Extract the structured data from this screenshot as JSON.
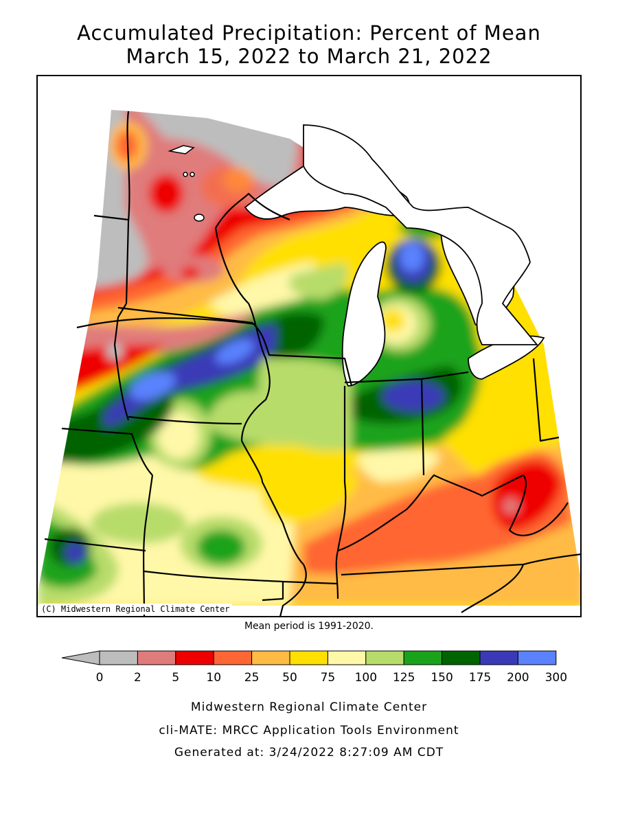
{
  "title": {
    "line1": "Accumulated Precipitation: Percent of Mean",
    "line2": "March 15, 2022 to March 21, 2022"
  },
  "map": {
    "copyright": "(C) Midwestern Regional Climate Center"
  },
  "mean_note": "Mean period is 1991-2020.",
  "legend": {
    "labels": [
      "0",
      "2",
      "5",
      "10",
      "25",
      "50",
      "75",
      "100",
      "125",
      "150",
      "175",
      "200",
      "300"
    ],
    "colors": [
      "#bdbdbd",
      "#e07b7b",
      "#ee0000",
      "#ff6633",
      "#ffbb44",
      "#ffe000",
      "#fff8a8",
      "#b8dc6a",
      "#1aa31a",
      "#006400",
      "#3a3ab8",
      "#5a82ff"
    ]
  },
  "footer": {
    "line1": "Midwestern Regional Climate Center",
    "line2": "cli-MATE: MRCC Application Tools Environment",
    "line3": "Generated at: 3/24/2022 8:27:09 AM CDT"
  }
}
